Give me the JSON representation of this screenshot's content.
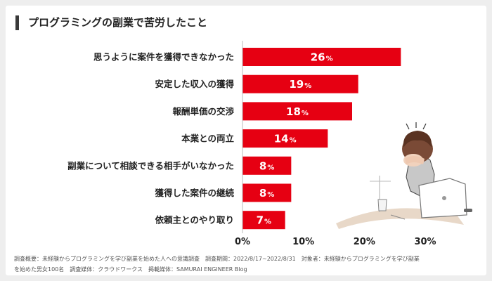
{
  "page": {
    "title": "プログラミングの副業で苦労したこと",
    "footer_line1": "調査概要：未経験からプログラミングを学び副業を始めた人への意識調査　調査期間：2022/8/17~2022/8/31　対象者：未経験からプログラミングを学び副業",
    "footer_line2": "を始めた男女100名　調査媒体：クラウドワークス　掲載媒体：SAMURAI ENGINEER Blog"
  },
  "chart_data": {
    "type": "bar",
    "orientation": "horizontal",
    "title": "プログラミングの副業で苦労したこと",
    "categories": [
      "思うように案件を獲得できなかった",
      "安定した収入の獲得",
      "報酬単価の交渉",
      "本業との両立",
      "副業について相談できる相手がいなかった",
      "獲得した案件の継続",
      "依頼主とのやり取り"
    ],
    "values": [
      26,
      19,
      18,
      14,
      8,
      8,
      7
    ],
    "value_unit": "%",
    "xlim": [
      0,
      30
    ],
    "xticks": [
      "0%",
      "10%",
      "20%",
      "30%"
    ],
    "bar_color": "#e60012",
    "grid": false
  }
}
